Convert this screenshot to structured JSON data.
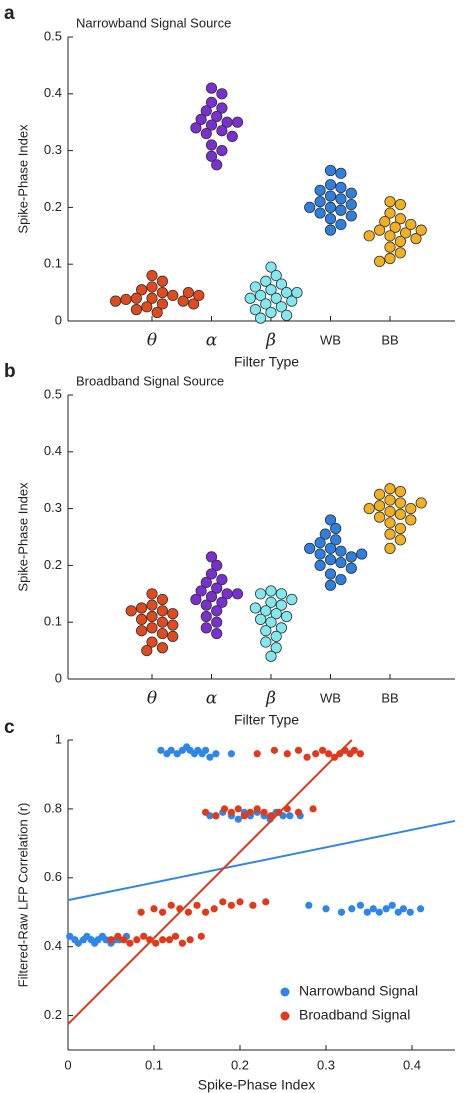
{
  "chart_data": [
    {
      "type": "strip",
      "panel": "a",
      "title": "Narrowband Signal Source",
      "xlabel": "Filter Type",
      "ylabel": "Spike-Phase Index",
      "categories": [
        "θ",
        "α",
        "β",
        "WB",
        "BB"
      ],
      "colors": [
        "#e04a1c",
        "#7a2fd2",
        "#80e8ee",
        "#2e80e0",
        "#f0b020"
      ],
      "values": [
        [
          0.08,
          0.07,
          0.06,
          0.055,
          0.05,
          0.045,
          0.04,
          0.04,
          0.038,
          0.035,
          0.035,
          0.03,
          0.03,
          0.025,
          0.02,
          0.015,
          0.045,
          0.05
        ],
        [
          0.41,
          0.4,
          0.385,
          0.375,
          0.37,
          0.36,
          0.355,
          0.35,
          0.345,
          0.34,
          0.335,
          0.33,
          0.325,
          0.31,
          0.3,
          0.29,
          0.275,
          0.35
        ],
        [
          0.095,
          0.08,
          0.07,
          0.065,
          0.06,
          0.055,
          0.05,
          0.045,
          0.04,
          0.04,
          0.035,
          0.03,
          0.025,
          0.02,
          0.015,
          0.01,
          0.005,
          0.05
        ],
        [
          0.265,
          0.26,
          0.24,
          0.235,
          0.23,
          0.22,
          0.215,
          0.21,
          0.205,
          0.2,
          0.2,
          0.195,
          0.19,
          0.185,
          0.18,
          0.17,
          0.16,
          0.225
        ],
        [
          0.21,
          0.205,
          0.19,
          0.18,
          0.175,
          0.165,
          0.16,
          0.155,
          0.15,
          0.15,
          0.145,
          0.14,
          0.13,
          0.12,
          0.11,
          0.105,
          0.16,
          0.17
        ]
      ],
      "ylim": [
        0,
        0.5
      ],
      "yticks": [
        0,
        0.1,
        0.2,
        0.3,
        0.4,
        0.5
      ]
    },
    {
      "type": "strip",
      "panel": "b",
      "title": "Broadband Signal Source",
      "xlabel": "Filter Type",
      "ylabel": "Spike-Phase Index",
      "categories": [
        "θ",
        "α",
        "β",
        "WB",
        "BB"
      ],
      "colors": [
        "#e04a1c",
        "#7a2fd2",
        "#80e8ee",
        "#2e80e0",
        "#f0b020"
      ],
      "values": [
        [
          0.15,
          0.14,
          0.13,
          0.125,
          0.12,
          0.115,
          0.11,
          0.105,
          0.1,
          0.095,
          0.09,
          0.085,
          0.08,
          0.075,
          0.065,
          0.055,
          0.05,
          0.12
        ],
        [
          0.215,
          0.2,
          0.185,
          0.175,
          0.17,
          0.16,
          0.155,
          0.15,
          0.145,
          0.14,
          0.135,
          0.13,
          0.12,
          0.11,
          0.1,
          0.09,
          0.08,
          0.15
        ],
        [
          0.155,
          0.15,
          0.15,
          0.14,
          0.135,
          0.13,
          0.12,
          0.115,
          0.11,
          0.105,
          0.1,
          0.09,
          0.085,
          0.075,
          0.065,
          0.055,
          0.04,
          0.125
        ],
        [
          0.28,
          0.265,
          0.255,
          0.245,
          0.24,
          0.23,
          0.225,
          0.22,
          0.215,
          0.21,
          0.205,
          0.2,
          0.195,
          0.185,
          0.175,
          0.165,
          0.23,
          0.22
        ],
        [
          0.335,
          0.33,
          0.325,
          0.315,
          0.31,
          0.305,
          0.3,
          0.295,
          0.29,
          0.285,
          0.28,
          0.275,
          0.265,
          0.255,
          0.245,
          0.23,
          0.3,
          0.31
        ]
      ],
      "ylim": [
        0,
        0.5
      ],
      "yticks": [
        0,
        0.1,
        0.2,
        0.3,
        0.4,
        0.5
      ]
    },
    {
      "type": "scatter",
      "panel": "c",
      "xlabel": "Spike-Phase Index",
      "ylabel": "Filtered-Raw LFP Correlation (r)",
      "xlim": [
        0,
        0.45
      ],
      "xticks": [
        0,
        0.1,
        0.2,
        0.3,
        0.4
      ],
      "ylim": [
        0.1,
        1
      ],
      "yticks": [
        0.2,
        0.4,
        0.6,
        0.8,
        1
      ],
      "legend": "lower right",
      "series": [
        {
          "name": "Narrowband Signal",
          "color": "#2e86e8",
          "x": [
            0.002,
            0.008,
            0.012,
            0.018,
            0.022,
            0.027,
            0.031,
            0.035,
            0.04,
            0.044,
            0.05,
            0.055,
            0.06,
            0.068,
            0.108,
            0.115,
            0.12,
            0.127,
            0.133,
            0.138,
            0.142,
            0.147,
            0.151,
            0.156,
            0.16,
            0.165,
            0.172,
            0.19,
            0.165,
            0.172,
            0.18,
            0.19,
            0.198,
            0.205,
            0.212,
            0.22,
            0.228,
            0.235,
            0.242,
            0.25,
            0.258,
            0.27,
            0.28,
            0.3,
            0.318,
            0.33,
            0.34,
            0.348,
            0.355,
            0.362,
            0.37,
            0.377,
            0.384,
            0.39,
            0.398,
            0.41
          ],
          "y": [
            0.43,
            0.42,
            0.41,
            0.42,
            0.43,
            0.42,
            0.41,
            0.42,
            0.43,
            0.42,
            0.41,
            0.42,
            0.42,
            0.43,
            0.97,
            0.96,
            0.97,
            0.96,
            0.97,
            0.98,
            0.97,
            0.96,
            0.97,
            0.96,
            0.97,
            0.95,
            0.96,
            0.96,
            0.78,
            0.78,
            0.79,
            0.78,
            0.77,
            0.79,
            0.78,
            0.79,
            0.78,
            0.77,
            0.79,
            0.78,
            0.78,
            0.78,
            0.52,
            0.51,
            0.5,
            0.51,
            0.52,
            0.5,
            0.51,
            0.5,
            0.51,
            0.52,
            0.5,
            0.51,
            0.5,
            0.51
          ],
          "trend": {
            "x": [
              0,
              0.45
            ],
            "y": [
              0.535,
              0.765
            ]
          }
        },
        {
          "name": "Broadband Signal",
          "color": "#e03a1a",
          "x": [
            0.05,
            0.058,
            0.065,
            0.072,
            0.08,
            0.088,
            0.095,
            0.102,
            0.11,
            0.118,
            0.125,
            0.133,
            0.142,
            0.155,
            0.085,
            0.1,
            0.11,
            0.12,
            0.13,
            0.14,
            0.15,
            0.16,
            0.17,
            0.18,
            0.19,
            0.2,
            0.215,
            0.23,
            0.16,
            0.172,
            0.182,
            0.19,
            0.198,
            0.205,
            0.212,
            0.22,
            0.228,
            0.236,
            0.245,
            0.255,
            0.268,
            0.285,
            0.22,
            0.24,
            0.255,
            0.268,
            0.278,
            0.288,
            0.296,
            0.303,
            0.31,
            0.316,
            0.322,
            0.328,
            0.333,
            0.34
          ],
          "y": [
            0.42,
            0.43,
            0.42,
            0.41,
            0.42,
            0.43,
            0.42,
            0.41,
            0.42,
            0.42,
            0.43,
            0.41,
            0.42,
            0.43,
            0.5,
            0.51,
            0.5,
            0.52,
            0.51,
            0.5,
            0.52,
            0.5,
            0.51,
            0.53,
            0.52,
            0.53,
            0.52,
            0.53,
            0.79,
            0.78,
            0.8,
            0.79,
            0.8,
            0.78,
            0.79,
            0.8,
            0.79,
            0.78,
            0.79,
            0.8,
            0.79,
            0.8,
            0.96,
            0.97,
            0.96,
            0.97,
            0.95,
            0.96,
            0.97,
            0.96,
            0.95,
            0.96,
            0.97,
            0.96,
            0.97,
            0.96
          ],
          "trend": {
            "x": [
              0,
              0.33
            ],
            "y": [
              0.175,
              1.0
            ]
          }
        }
      ]
    }
  ]
}
